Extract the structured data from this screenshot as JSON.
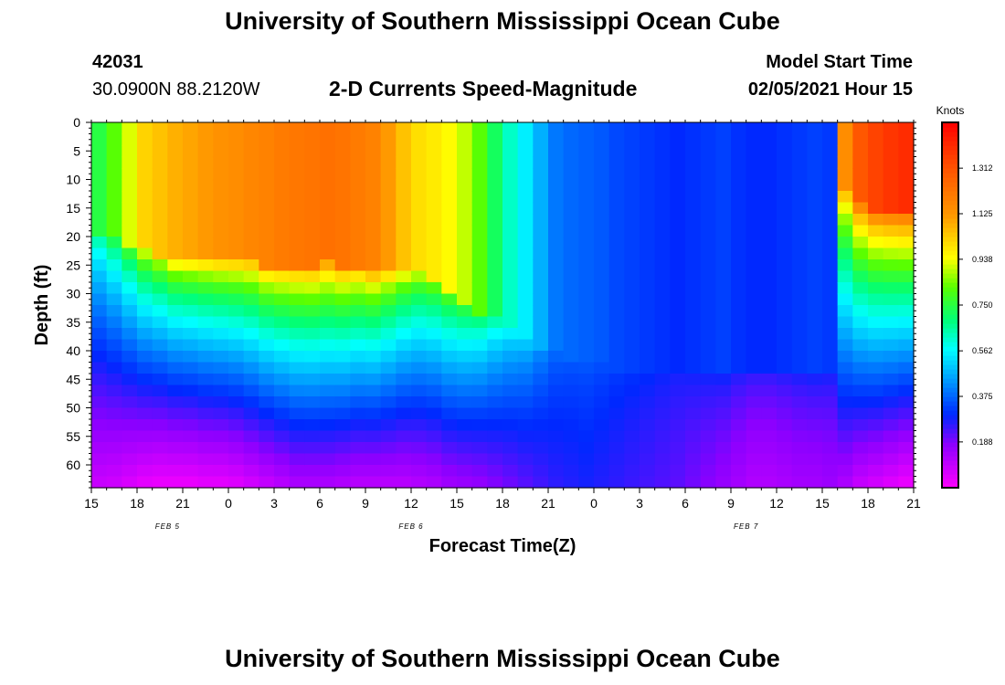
{
  "header": {
    "title": "University of Southern Mississippi Ocean Cube",
    "station_id": "42031",
    "coordinates": "30.0900N 88.2120W",
    "subtitle": "2-D Currents Speed-Magnitude",
    "model_start_label": "Model Start Time",
    "model_start_value": "02/05/2021 Hour 15"
  },
  "footer": {
    "title": "University of Southern Mississippi Ocean Cube"
  },
  "chart_data": {
    "type": "heatmap",
    "title": "2-D Currents Speed-Magnitude",
    "xlabel": "Forecast Time(Z)",
    "ylabel": "Depth (ft)",
    "y_reversed": true,
    "ylim": [
      0,
      64
    ],
    "x_tick_labels": [
      "15",
      "18",
      "21",
      "0",
      "3",
      "6",
      "9",
      "12",
      "15",
      "18",
      "21",
      "0",
      "3",
      "6",
      "9",
      "12",
      "15",
      "18",
      "21"
    ],
    "y_tick_labels": [
      "0",
      "5",
      "10",
      "15",
      "20",
      "25",
      "30",
      "35",
      "40",
      "45",
      "50",
      "55",
      "60"
    ],
    "date_labels": [
      {
        "text": "FEB 5",
        "hour_index": 5
      },
      {
        "text": "FEB 6",
        "hour_index": 21
      },
      {
        "text": "FEB 7",
        "hour_index": 43
      }
    ],
    "hours_total": 54,
    "colorbar": {
      "unit": "Knots",
      "min": 0.0,
      "max": 1.5,
      "ticks": [
        "0.188",
        "0.375",
        "0.562",
        "0.750",
        "0.938",
        "1.125",
        "1.312"
      ]
    },
    "surface_speed": [
      0.75,
      0.82,
      0.92,
      1.02,
      1.05,
      1.08,
      1.1,
      1.12,
      1.14,
      1.15,
      1.17,
      1.18,
      1.2,
      1.21,
      1.22,
      1.23,
      1.22,
      1.2,
      1.18,
      1.12,
      1.05,
      1.0,
      0.98,
      0.95,
      0.9,
      0.82,
      0.72,
      0.62,
      0.55,
      0.47,
      0.4,
      0.38,
      0.37,
      0.36,
      0.34,
      0.33,
      0.32,
      0.31,
      0.3,
      0.31,
      0.32,
      0.33,
      0.31,
      0.3,
      0.3,
      0.31,
      0.32,
      0.33,
      0.32,
      1.15,
      1.3,
      1.35,
      1.38,
      1.4,
      1.42
    ],
    "mixed_layer_depth_ft": [
      19,
      20,
      21,
      22,
      23,
      24,
      24,
      24,
      24,
      24,
      24,
      25,
      25,
      25,
      25,
      24,
      25,
      25,
      26,
      26,
      26,
      26,
      27,
      29,
      31,
      33,
      34,
      36,
      38,
      39,
      40,
      41,
      42,
      42,
      43,
      43,
      43,
      43,
      43,
      43,
      43,
      43,
      43,
      43,
      43,
      43,
      43,
      43,
      43,
      12,
      14,
      15,
      15,
      15,
      15
    ],
    "bottom_speed": [
      0.08,
      0.07,
      0.05,
      0.03,
      0.02,
      0.02,
      0.02,
      0.03,
      0.03,
      0.04,
      0.06,
      0.08,
      0.1,
      0.12,
      0.12,
      0.12,
      0.11,
      0.1,
      0.1,
      0.1,
      0.1,
      0.11,
      0.12,
      0.14,
      0.15,
      0.16,
      0.18,
      0.2,
      0.22,
      0.24,
      0.26,
      0.27,
      0.28,
      0.27,
      0.26,
      0.25,
      0.24,
      0.23,
      0.22,
      0.2,
      0.18,
      0.16,
      0.14,
      0.12,
      0.12,
      0.13,
      0.14,
      0.14,
      0.15,
      0.12,
      0.08,
      0.06,
      0.04,
      0.02,
      0.02
    ]
  }
}
